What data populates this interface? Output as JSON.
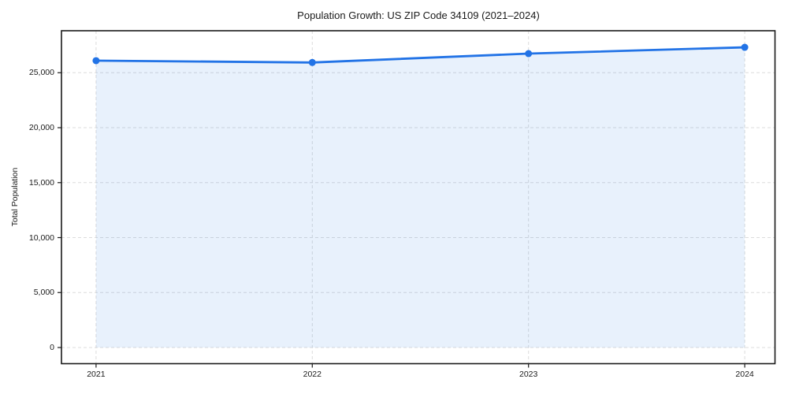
{
  "page": {
    "background": "#ffffff"
  },
  "chart_data": {
    "type": "area",
    "title": "Population Growth: US ZIP Code 34109 (2021–2024)",
    "xlabel": "",
    "ylabel": "Total Population",
    "x": [
      2021,
      2022,
      2023,
      2024
    ],
    "x_tick_labels": [
      "2021",
      "2022",
      "2023",
      "2024"
    ],
    "series": [
      {
        "name": "Total Population",
        "values": [
          26100,
          25930,
          26740,
          27310
        ]
      }
    ],
    "y_ticks": [
      0,
      5000,
      10000,
      15000,
      20000,
      25000
    ],
    "y_tick_labels": [
      "0",
      "5,000",
      "10,000",
      "15,000",
      "20,000",
      "25,000"
    ],
    "xlim": [
      2020.84,
      2024.14
    ],
    "ylim": [
      -1470,
      28820
    ],
    "grid": "dashed-both-axes",
    "legend": "none",
    "marker": "circle",
    "colors": {
      "line": "#2273e6",
      "marker": "#2273e6",
      "fill": "#2273e6",
      "fill_opacity": 0.1,
      "grid": "#dcdcdc",
      "spine": "#1a1a1a",
      "text": "#1a1a1a"
    }
  }
}
